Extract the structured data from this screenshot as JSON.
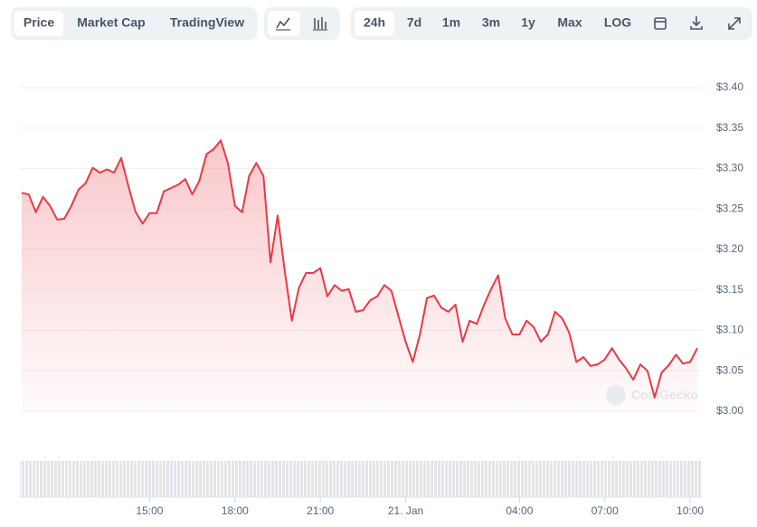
{
  "toolbar": {
    "views": [
      "Price",
      "Market Cap",
      "TradingView"
    ],
    "ranges": [
      "24h",
      "7d",
      "1m",
      "3m",
      "1y",
      "Max",
      "LOG"
    ]
  },
  "chart_data": {
    "type": "line",
    "color": "#ea3943",
    "watermark": "CoinGecko",
    "grid": true,
    "x": [
      10.5,
      10.75,
      11,
      11.25,
      11.5,
      11.75,
      12,
      12.25,
      12.5,
      12.75,
      13,
      13.25,
      13.5,
      13.75,
      14,
      14.25,
      14.5,
      14.75,
      15,
      15.25,
      15.5,
      15.75,
      16,
      16.25,
      16.5,
      16.75,
      17,
      17.25,
      17.5,
      17.75,
      18,
      18.25,
      18.5,
      18.75,
      19,
      19.25,
      19.5,
      19.75,
      20,
      20.25,
      20.5,
      20.75,
      21,
      21.25,
      21.5,
      21.75,
      22,
      22.25,
      22.5,
      22.75,
      23,
      23.25,
      23.5,
      23.75,
      24,
      24.25,
      24.5,
      24.75,
      25,
      25.25,
      25.5,
      25.75,
      26,
      26.25,
      26.5,
      26.75,
      27,
      27.25,
      27.5,
      27.75,
      28,
      28.25,
      28.5,
      28.75,
      29,
      29.25,
      29.5,
      29.75,
      30,
      30.25,
      30.5,
      30.75,
      31,
      31.25,
      31.5,
      31.75,
      32,
      32.25,
      32.5,
      32.75,
      33,
      33.25,
      33.5,
      33.75,
      34,
      34.25
    ],
    "values": [
      3.27,
      3.268,
      3.246,
      3.265,
      3.254,
      3.237,
      3.238,
      3.254,
      3.274,
      3.282,
      3.301,
      3.295,
      3.299,
      3.295,
      3.313,
      3.279,
      3.247,
      3.232,
      3.245,
      3.245,
      3.272,
      3.276,
      3.28,
      3.287,
      3.268,
      3.285,
      3.318,
      3.324,
      3.335,
      3.307,
      3.254,
      3.246,
      3.291,
      3.307,
      3.291,
      3.184,
      3.242,
      3.173,
      3.112,
      3.153,
      3.171,
      3.171,
      3.177,
      3.142,
      3.156,
      3.149,
      3.151,
      3.123,
      3.125,
      3.137,
      3.142,
      3.156,
      3.149,
      3.117,
      3.086,
      3.061,
      3.095,
      3.14,
      3.143,
      3.128,
      3.123,
      3.132,
      3.086,
      3.112,
      3.108,
      3.131,
      3.151,
      3.168,
      3.115,
      3.095,
      3.095,
      3.112,
      3.104,
      3.086,
      3.095,
      3.123,
      3.115,
      3.097,
      3.061,
      3.067,
      3.056,
      3.058,
      3.064,
      3.078,
      3.064,
      3.053,
      3.039,
      3.058,
      3.05,
      3.017,
      3.048,
      3.057,
      3.07,
      3.059,
      3.061,
      3.078
    ],
    "xlim": [
      10.44,
      34.41
    ],
    "xticks": [
      {
        "value": 15,
        "label": "15:00"
      },
      {
        "value": 18,
        "label": "18:00"
      },
      {
        "value": 21,
        "label": "21:00"
      },
      {
        "value": 24,
        "label": "21. Jan"
      },
      {
        "value": 28,
        "label": "04:00"
      },
      {
        "value": 31,
        "label": "07:00"
      },
      {
        "value": 34,
        "label": "10:00"
      }
    ],
    "ylim": [
      3.0,
      3.4
    ],
    "yticks": [
      {
        "value": 3.0,
        "label": "$3.00"
      },
      {
        "value": 3.05,
        "label": "$3.05"
      },
      {
        "value": 3.1,
        "label": "$3.10"
      },
      {
        "value": 3.15,
        "label": "$3.15"
      },
      {
        "value": 3.2,
        "label": "$3.20"
      },
      {
        "value": 3.25,
        "label": "$3.25"
      },
      {
        "value": 3.3,
        "label": "$3.30"
      },
      {
        "value": 3.35,
        "label": "$3.35"
      },
      {
        "value": 3.4,
        "label": "$3.40"
      }
    ]
  }
}
